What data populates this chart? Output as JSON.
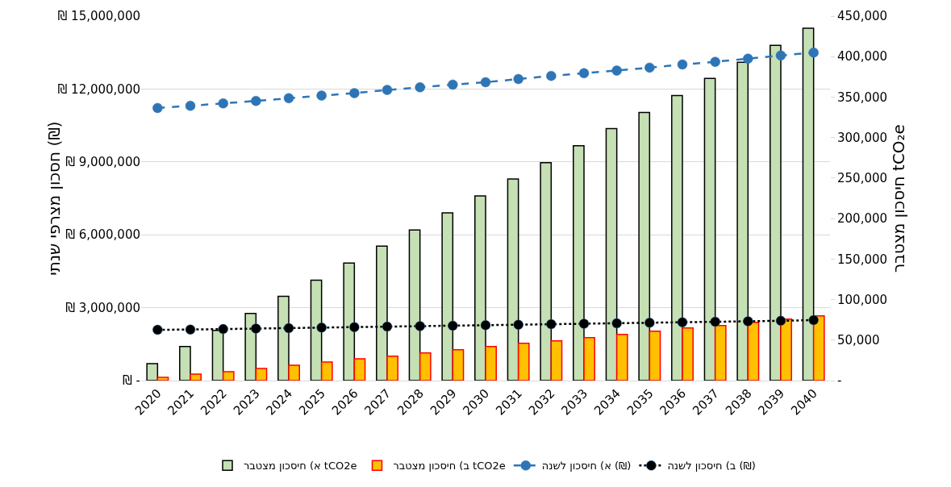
{
  "chart_data": {
    "type": "bar",
    "categories": [
      "2020",
      "2021",
      "2022",
      "2023",
      "2024",
      "2025",
      "2026",
      "2027",
      "2028",
      "2029",
      "2030",
      "2031",
      "2032",
      "2033",
      "2034",
      "2035",
      "2036",
      "2037",
      "2038",
      "2039",
      "2040"
    ],
    "ylabel": "חסכון מצרפי שנתי (₪)",
    "y2label": "חיסכון מצטבר tCO₂e",
    "series": [
      {
        "name": "א) חיסכון מצטבר tCO2e",
        "axis": "y2",
        "color": "#c5e0b4",
        "values": [
          21000,
          42000,
          62000,
          83000,
          104000,
          124000,
          145000,
          166000,
          186000,
          207000,
          228000,
          249000,
          269000,
          290000,
          311000,
          331000,
          352000,
          373000,
          393000,
          414000,
          435000
        ]
      },
      {
        "name": "ב) חיסכון מצטבר tCO2e",
        "axis": "y2",
        "color": "#ffc000",
        "values": [
          4000,
          8000,
          11000,
          15000,
          19000,
          23000,
          27000,
          30000,
          34000,
          38000,
          42000,
          46000,
          49000,
          53000,
          57000,
          61000,
          65000,
          68000,
          72000,
          76000,
          80000
        ]
      },
      {
        "name": "א) חיסכון לשנה (₪)",
        "type": "line",
        "color": "#2e75b6",
        "line_style": "dashed",
        "marker": "circle",
        "values": [
          11220000,
          11310000,
          11410000,
          11510000,
          11620000,
          11730000,
          11830000,
          11960000,
          12070000,
          12180000,
          12280000,
          12410000,
          12540000,
          12650000,
          12760000,
          12880000,
          13010000,
          13120000,
          13250000,
          13380000,
          13500000
        ]
      },
      {
        "name": "ב) חיסכון לשנה (₪)",
        "type": "line",
        "color": "#000000",
        "line_style": "dotted",
        "marker": "circle",
        "values": [
          2090000,
          2100000,
          2120000,
          2140000,
          2160000,
          2180000,
          2200000,
          2220000,
          2240000,
          2260000,
          2280000,
          2300000,
          2320000,
          2340000,
          2360000,
          2380000,
          2400000,
          2420000,
          2440000,
          2460000,
          2490000
        ]
      }
    ],
    "ylim": [
      0,
      15000000
    ],
    "yticks": [
      {
        "value": 0,
        "label": "₪ -"
      },
      {
        "value": 3000000,
        "label": "₪ 3,000,000"
      },
      {
        "value": 6000000,
        "label": "₪ 6,000,000"
      },
      {
        "value": 9000000,
        "label": "₪ 9,000,000"
      },
      {
        "value": 12000000,
        "label": "₪ 12,000,000"
      },
      {
        "value": 15000000,
        "label": "₪ 15,000,000"
      }
    ],
    "y2lim": [
      0,
      450000
    ],
    "y2ticks": [
      {
        "value": 0,
        "label": "-"
      },
      {
        "value": 50000,
        "label": "50,000"
      },
      {
        "value": 100000,
        "label": "100,000"
      },
      {
        "value": 150000,
        "label": "150,000"
      },
      {
        "value": 200000,
        "label": "200,000"
      },
      {
        "value": 250000,
        "label": "250,000"
      },
      {
        "value": 300000,
        "label": "300,000"
      },
      {
        "value": 350000,
        "label": "350,000"
      },
      {
        "value": 400000,
        "label": "400,000"
      },
      {
        "value": 450000,
        "label": "450,000"
      }
    ],
    "grid": "y",
    "legend": "bottom"
  }
}
